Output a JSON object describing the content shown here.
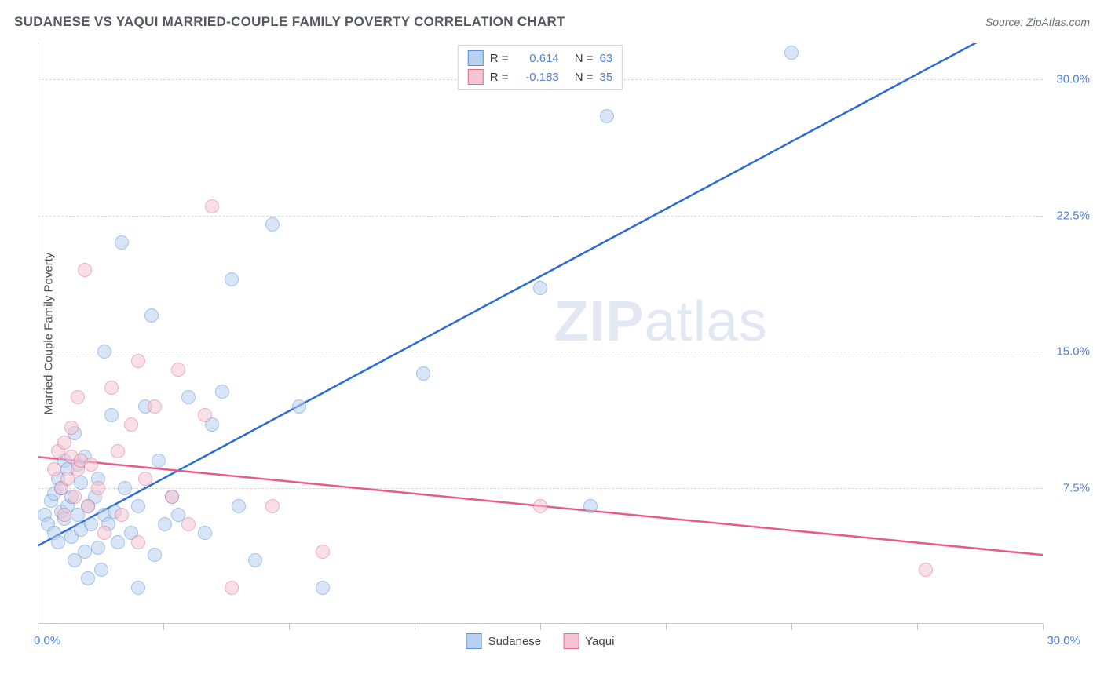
{
  "title": "SUDANESE VS YAQUI MARRIED-COUPLE FAMILY POVERTY CORRELATION CHART",
  "source": "Source: ZipAtlas.com",
  "y_axis_label": "Married-Couple Family Poverty",
  "watermark_bold": "ZIP",
  "watermark_rest": "atlas",
  "chart": {
    "type": "scatter",
    "xlim": [
      0,
      30
    ],
    "ylim": [
      0,
      32
    ],
    "x_min_label": "0.0%",
    "x_max_label": "30.0%",
    "x_ticks": [
      0,
      3.75,
      7.5,
      11.25,
      15,
      18.75,
      22.5,
      26.25,
      30
    ],
    "y_ticks": [
      {
        "v": 7.5,
        "label": "7.5%"
      },
      {
        "v": 15,
        "label": "15.0%"
      },
      {
        "v": 22.5,
        "label": "22.5%"
      },
      {
        "v": 30,
        "label": "30.0%"
      }
    ],
    "grid_color": "#d8d8d8",
    "background_color": "#ffffff",
    "series": [
      {
        "name": "Sudanese",
        "fill": "#b8d1f0",
        "stroke": "#5a93d8",
        "trend_color": "#2c6cd6",
        "r": 0.614,
        "n": 63,
        "trend_y_at_x0": 4.3,
        "trend_y_at_x30": 34.0,
        "points": [
          [
            0.2,
            6.0
          ],
          [
            0.3,
            5.5
          ],
          [
            0.4,
            6.8
          ],
          [
            0.5,
            7.2
          ],
          [
            0.5,
            5.0
          ],
          [
            0.6,
            4.5
          ],
          [
            0.6,
            8.0
          ],
          [
            0.7,
            7.5
          ],
          [
            0.7,
            6.2
          ],
          [
            0.8,
            5.8
          ],
          [
            0.8,
            9.0
          ],
          [
            0.9,
            6.5
          ],
          [
            0.9,
            8.5
          ],
          [
            1.0,
            7.0
          ],
          [
            1.0,
            4.8
          ],
          [
            1.1,
            10.5
          ],
          [
            1.1,
            3.5
          ],
          [
            1.2,
            6.0
          ],
          [
            1.2,
            8.8
          ],
          [
            1.3,
            5.2
          ],
          [
            1.3,
            7.8
          ],
          [
            1.4,
            4.0
          ],
          [
            1.4,
            9.2
          ],
          [
            1.5,
            6.5
          ],
          [
            1.5,
            2.5
          ],
          [
            1.6,
            5.5
          ],
          [
            1.7,
            7.0
          ],
          [
            1.8,
            4.2
          ],
          [
            1.8,
            8.0
          ],
          [
            1.9,
            3.0
          ],
          [
            2.0,
            6.0
          ],
          [
            2.0,
            15.0
          ],
          [
            2.1,
            5.5
          ],
          [
            2.2,
            11.5
          ],
          [
            2.3,
            6.2
          ],
          [
            2.4,
            4.5
          ],
          [
            2.5,
            21.0
          ],
          [
            2.6,
            7.5
          ],
          [
            2.8,
            5.0
          ],
          [
            3.0,
            6.5
          ],
          [
            3.0,
            2.0
          ],
          [
            3.2,
            12.0
          ],
          [
            3.4,
            17.0
          ],
          [
            3.5,
            3.8
          ],
          [
            3.6,
            9.0
          ],
          [
            3.8,
            5.5
          ],
          [
            4.0,
            7.0
          ],
          [
            4.2,
            6.0
          ],
          [
            4.5,
            12.5
          ],
          [
            5.0,
            5.0
          ],
          [
            5.2,
            11.0
          ],
          [
            5.5,
            12.8
          ],
          [
            5.8,
            19.0
          ],
          [
            6.0,
            6.5
          ],
          [
            6.5,
            3.5
          ],
          [
            7.0,
            22.0
          ],
          [
            7.8,
            12.0
          ],
          [
            8.5,
            2.0
          ],
          [
            11.5,
            13.8
          ],
          [
            15.0,
            18.5
          ],
          [
            16.5,
            6.5
          ],
          [
            17.0,
            28.0
          ],
          [
            22.5,
            31.5
          ]
        ]
      },
      {
        "name": "Yaqui",
        "fill": "#f5c5d3",
        "stroke": "#e0708f",
        "trend_color": "#e85a8a",
        "r": -0.183,
        "n": 35,
        "trend_y_at_x0": 9.2,
        "trend_y_at_x30": 3.8,
        "points": [
          [
            0.5,
            8.5
          ],
          [
            0.6,
            9.5
          ],
          [
            0.7,
            7.5
          ],
          [
            0.8,
            10.0
          ],
          [
            0.8,
            6.0
          ],
          [
            0.9,
            8.0
          ],
          [
            1.0,
            9.2
          ],
          [
            1.0,
            10.8
          ],
          [
            1.1,
            7.0
          ],
          [
            1.2,
            8.5
          ],
          [
            1.2,
            12.5
          ],
          [
            1.3,
            9.0
          ],
          [
            1.4,
            19.5
          ],
          [
            1.5,
            6.5
          ],
          [
            1.6,
            8.8
          ],
          [
            1.8,
            7.5
          ],
          [
            2.0,
            5.0
          ],
          [
            2.2,
            13.0
          ],
          [
            2.4,
            9.5
          ],
          [
            2.5,
            6.0
          ],
          [
            2.8,
            11.0
          ],
          [
            3.0,
            14.5
          ],
          [
            3.0,
            4.5
          ],
          [
            3.2,
            8.0
          ],
          [
            3.5,
            12.0
          ],
          [
            4.0,
            7.0
          ],
          [
            4.2,
            14.0
          ],
          [
            4.5,
            5.5
          ],
          [
            5.0,
            11.5
          ],
          [
            5.2,
            23.0
          ],
          [
            5.8,
            2.0
          ],
          [
            7.0,
            6.5
          ],
          [
            8.5,
            4.0
          ],
          [
            15.0,
            6.5
          ],
          [
            26.5,
            3.0
          ]
        ]
      }
    ]
  }
}
